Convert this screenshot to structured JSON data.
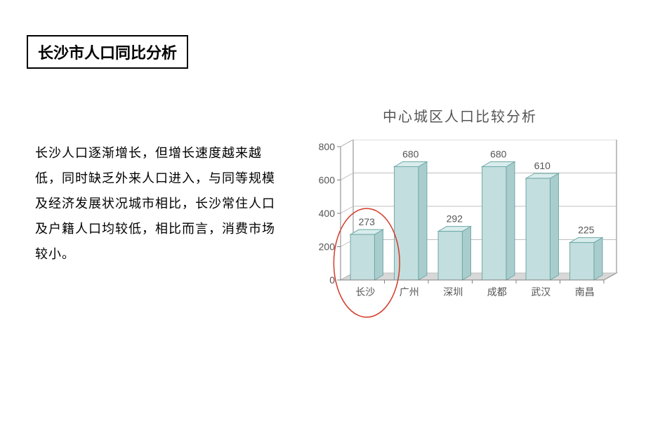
{
  "title": "长沙市人口同比分析",
  "body_text": "长沙人口逐渐增长，但增长速度越来越低，同时缺乏外来人口进入，与同等规模及经济发展状况城市相比，长沙常住人口及户籍人口均较低，相比而言，消费市场较小。",
  "chart": {
    "type": "bar",
    "title": "中心城区人口比较分析",
    "categories": [
      "长沙",
      "广州",
      "深圳",
      "成都",
      "武汉",
      "南昌"
    ],
    "values": [
      273,
      680,
      292,
      680,
      610,
      225
    ],
    "ylim": [
      0,
      800
    ],
    "ytick_step": 200,
    "yticks": [
      0,
      200,
      400,
      600,
      800
    ],
    "bar_front_color": "#c3dede",
    "bar_top_color": "#d9ecec",
    "bar_side_color": "#a9cdcd",
    "bar_border_color": "#6fa8a8",
    "floor_color": "#d8d8d8",
    "wall_color": "#ffffff",
    "grid_color": "#bfbfbf",
    "axis_color": "#808080",
    "text_color": "#555555",
    "value_fontsize": 14,
    "tick_fontsize": 14,
    "category_fontsize": 14,
    "title_fontsize": 20,
    "highlight": {
      "index": 0,
      "stroke_color": "#d43a2a",
      "stroke_width": 1.5
    }
  }
}
